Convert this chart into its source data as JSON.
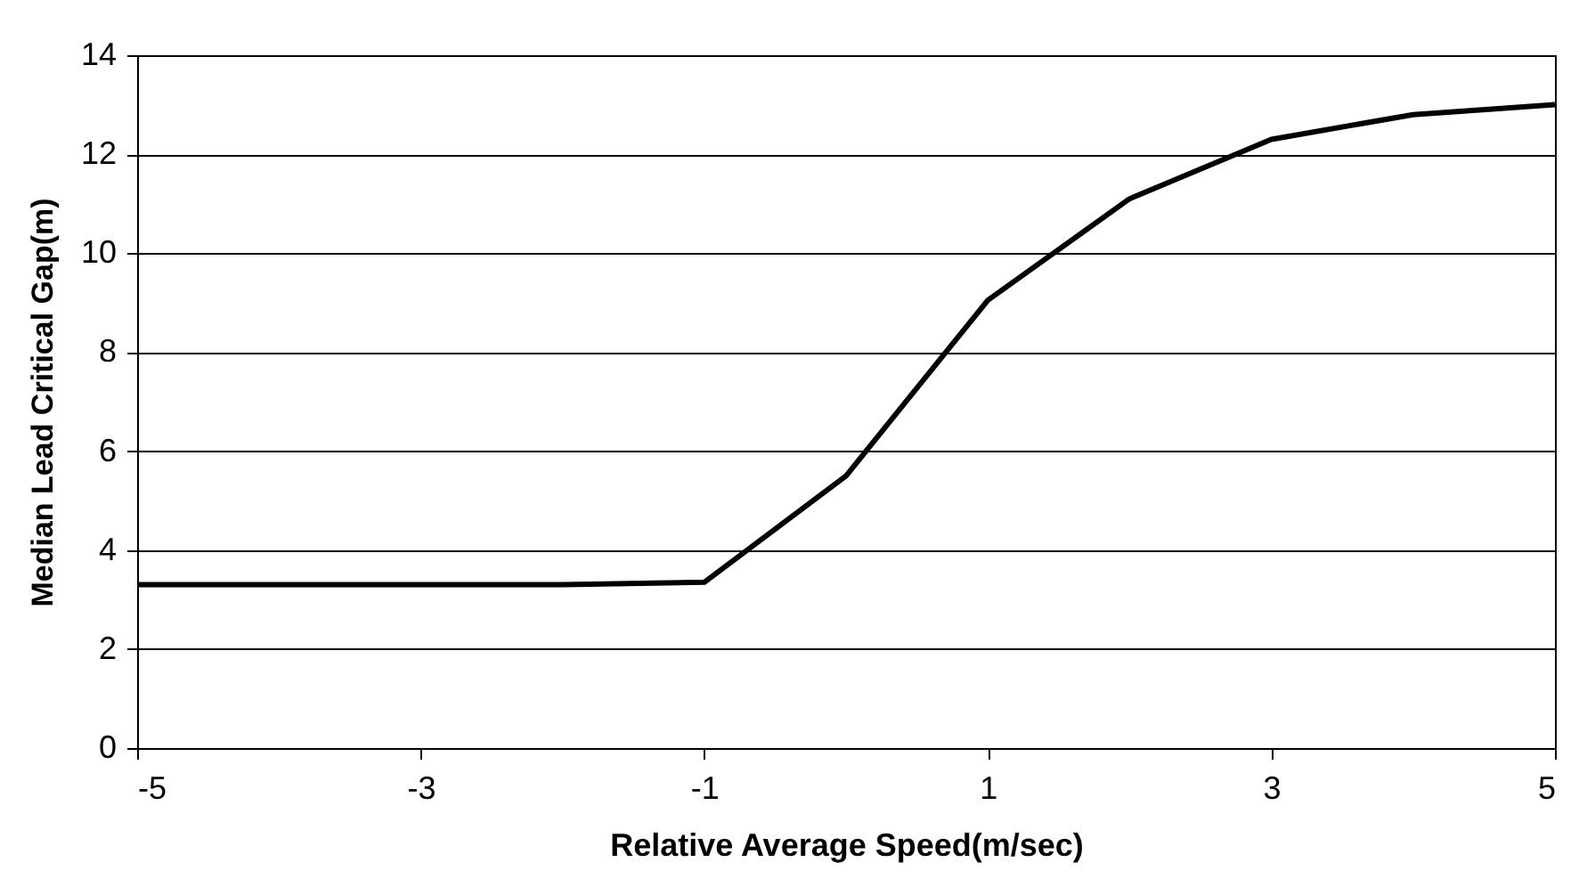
{
  "chart_data": {
    "type": "line",
    "xlabel": "Relative Average Speed(m/sec)",
    "ylabel": "Median Lead Critical Gap(m)",
    "x": [
      -5,
      -4,
      -3,
      -2,
      -1,
      0,
      1,
      2,
      3,
      4,
      5
    ],
    "series": [
      {
        "color": "#000000",
        "values": [
          3.3,
          3.3,
          3.3,
          3.3,
          3.35,
          5.5,
          9.05,
          11.1,
          12.3,
          12.8,
          13.0
        ]
      }
    ],
    "xlim": [
      -5,
      5
    ],
    "xticks": [
      -5,
      -3,
      -1,
      1,
      3,
      5
    ],
    "ylim": [
      0,
      14
    ],
    "yticks": [
      0,
      2,
      4,
      6,
      8,
      10,
      12,
      14
    ],
    "grid": "y",
    "marker": "none",
    "line_style": "solid"
  }
}
